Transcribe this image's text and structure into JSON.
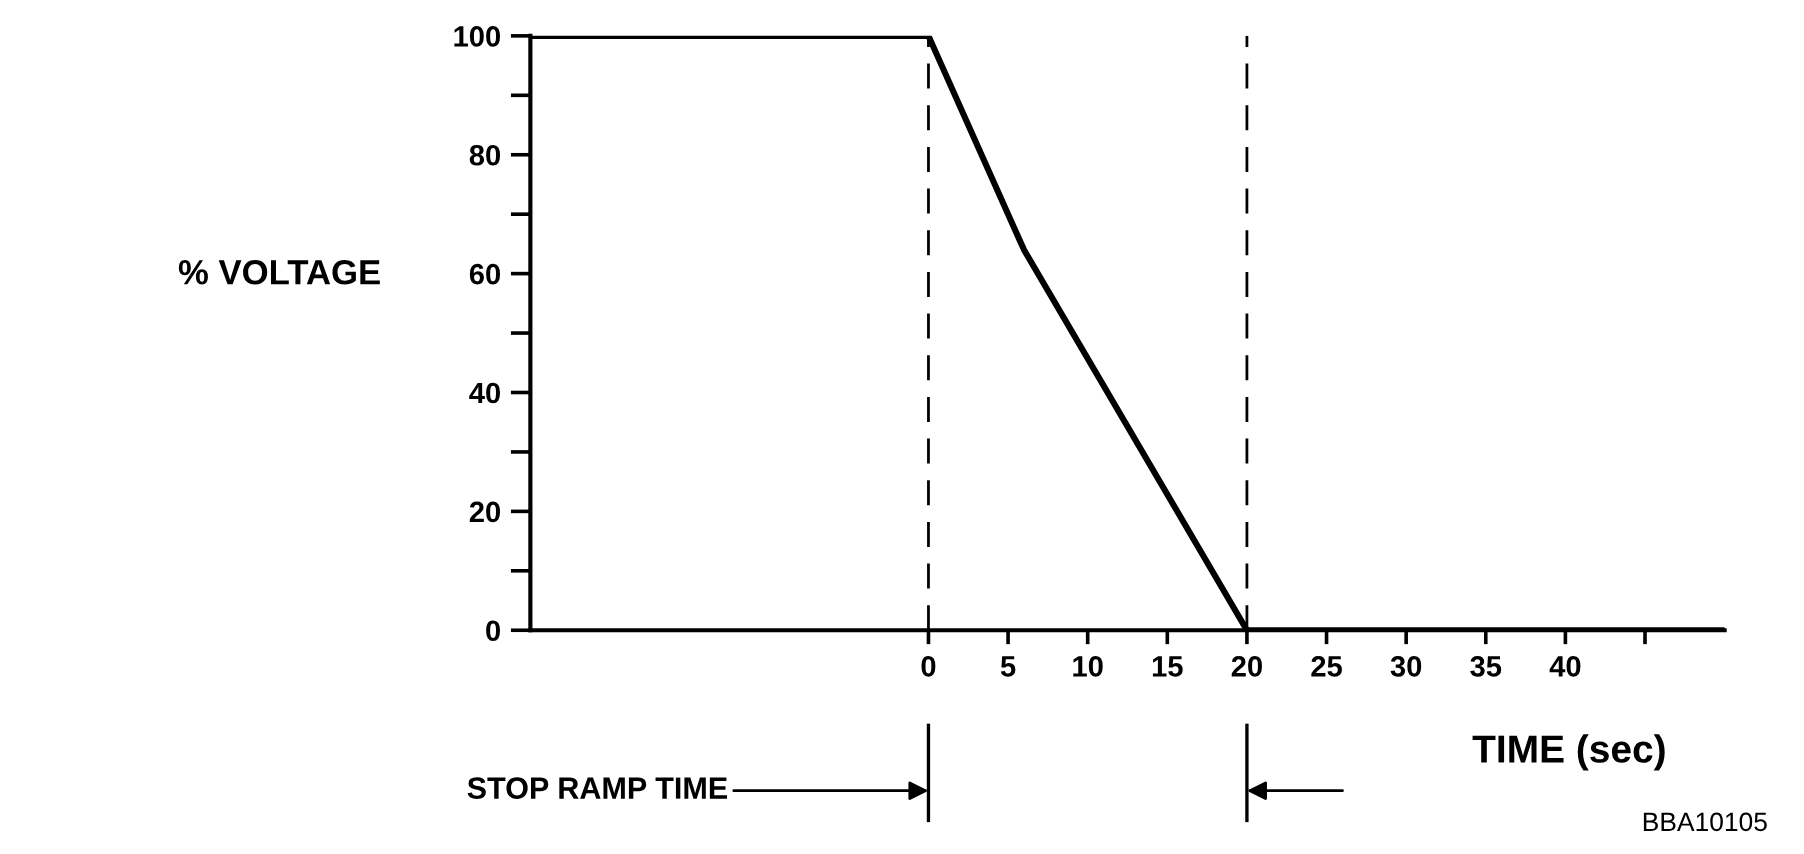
{
  "chart_data": {
    "type": "line",
    "ylabel": "% VOLTAGE",
    "xlabel": "TIME (sec)",
    "x": [
      -25,
      0,
      6,
      20,
      50
    ],
    "series": [
      {
        "color": "#000000",
        "values": [
          100,
          100,
          64,
          0,
          0
        ]
      }
    ],
    "xlim": [
      -25,
      50
    ],
    "ylim": [
      0,
      100
    ],
    "xticks": [
      0,
      5,
      10,
      15,
      20,
      25,
      30,
      35,
      40,
      {
        "value": 45,
        "label": null
      }
    ],
    "yticks": [
      0,
      {
        "value": 10,
        "label": null
      },
      20,
      {
        "value": 30,
        "label": null
      },
      40,
      {
        "value": 50,
        "label": null
      },
      60,
      {
        "value": 70,
        "label": null
      },
      80,
      {
        "value": 90,
        "label": null
      },
      100
    ],
    "ref_lines": [
      {
        "axis": "x",
        "value": 0,
        "color": "#000000",
        "line_style": "dashed"
      },
      {
        "axis": "x",
        "value": 20,
        "color": "#000000",
        "line_style": "dashed"
      }
    ],
    "annotations": [
      "STOP RAMP TIME",
      "BBA10105"
    ],
    "grid": false,
    "legend": false,
    "marker": "none",
    "line_style": "solid"
  }
}
